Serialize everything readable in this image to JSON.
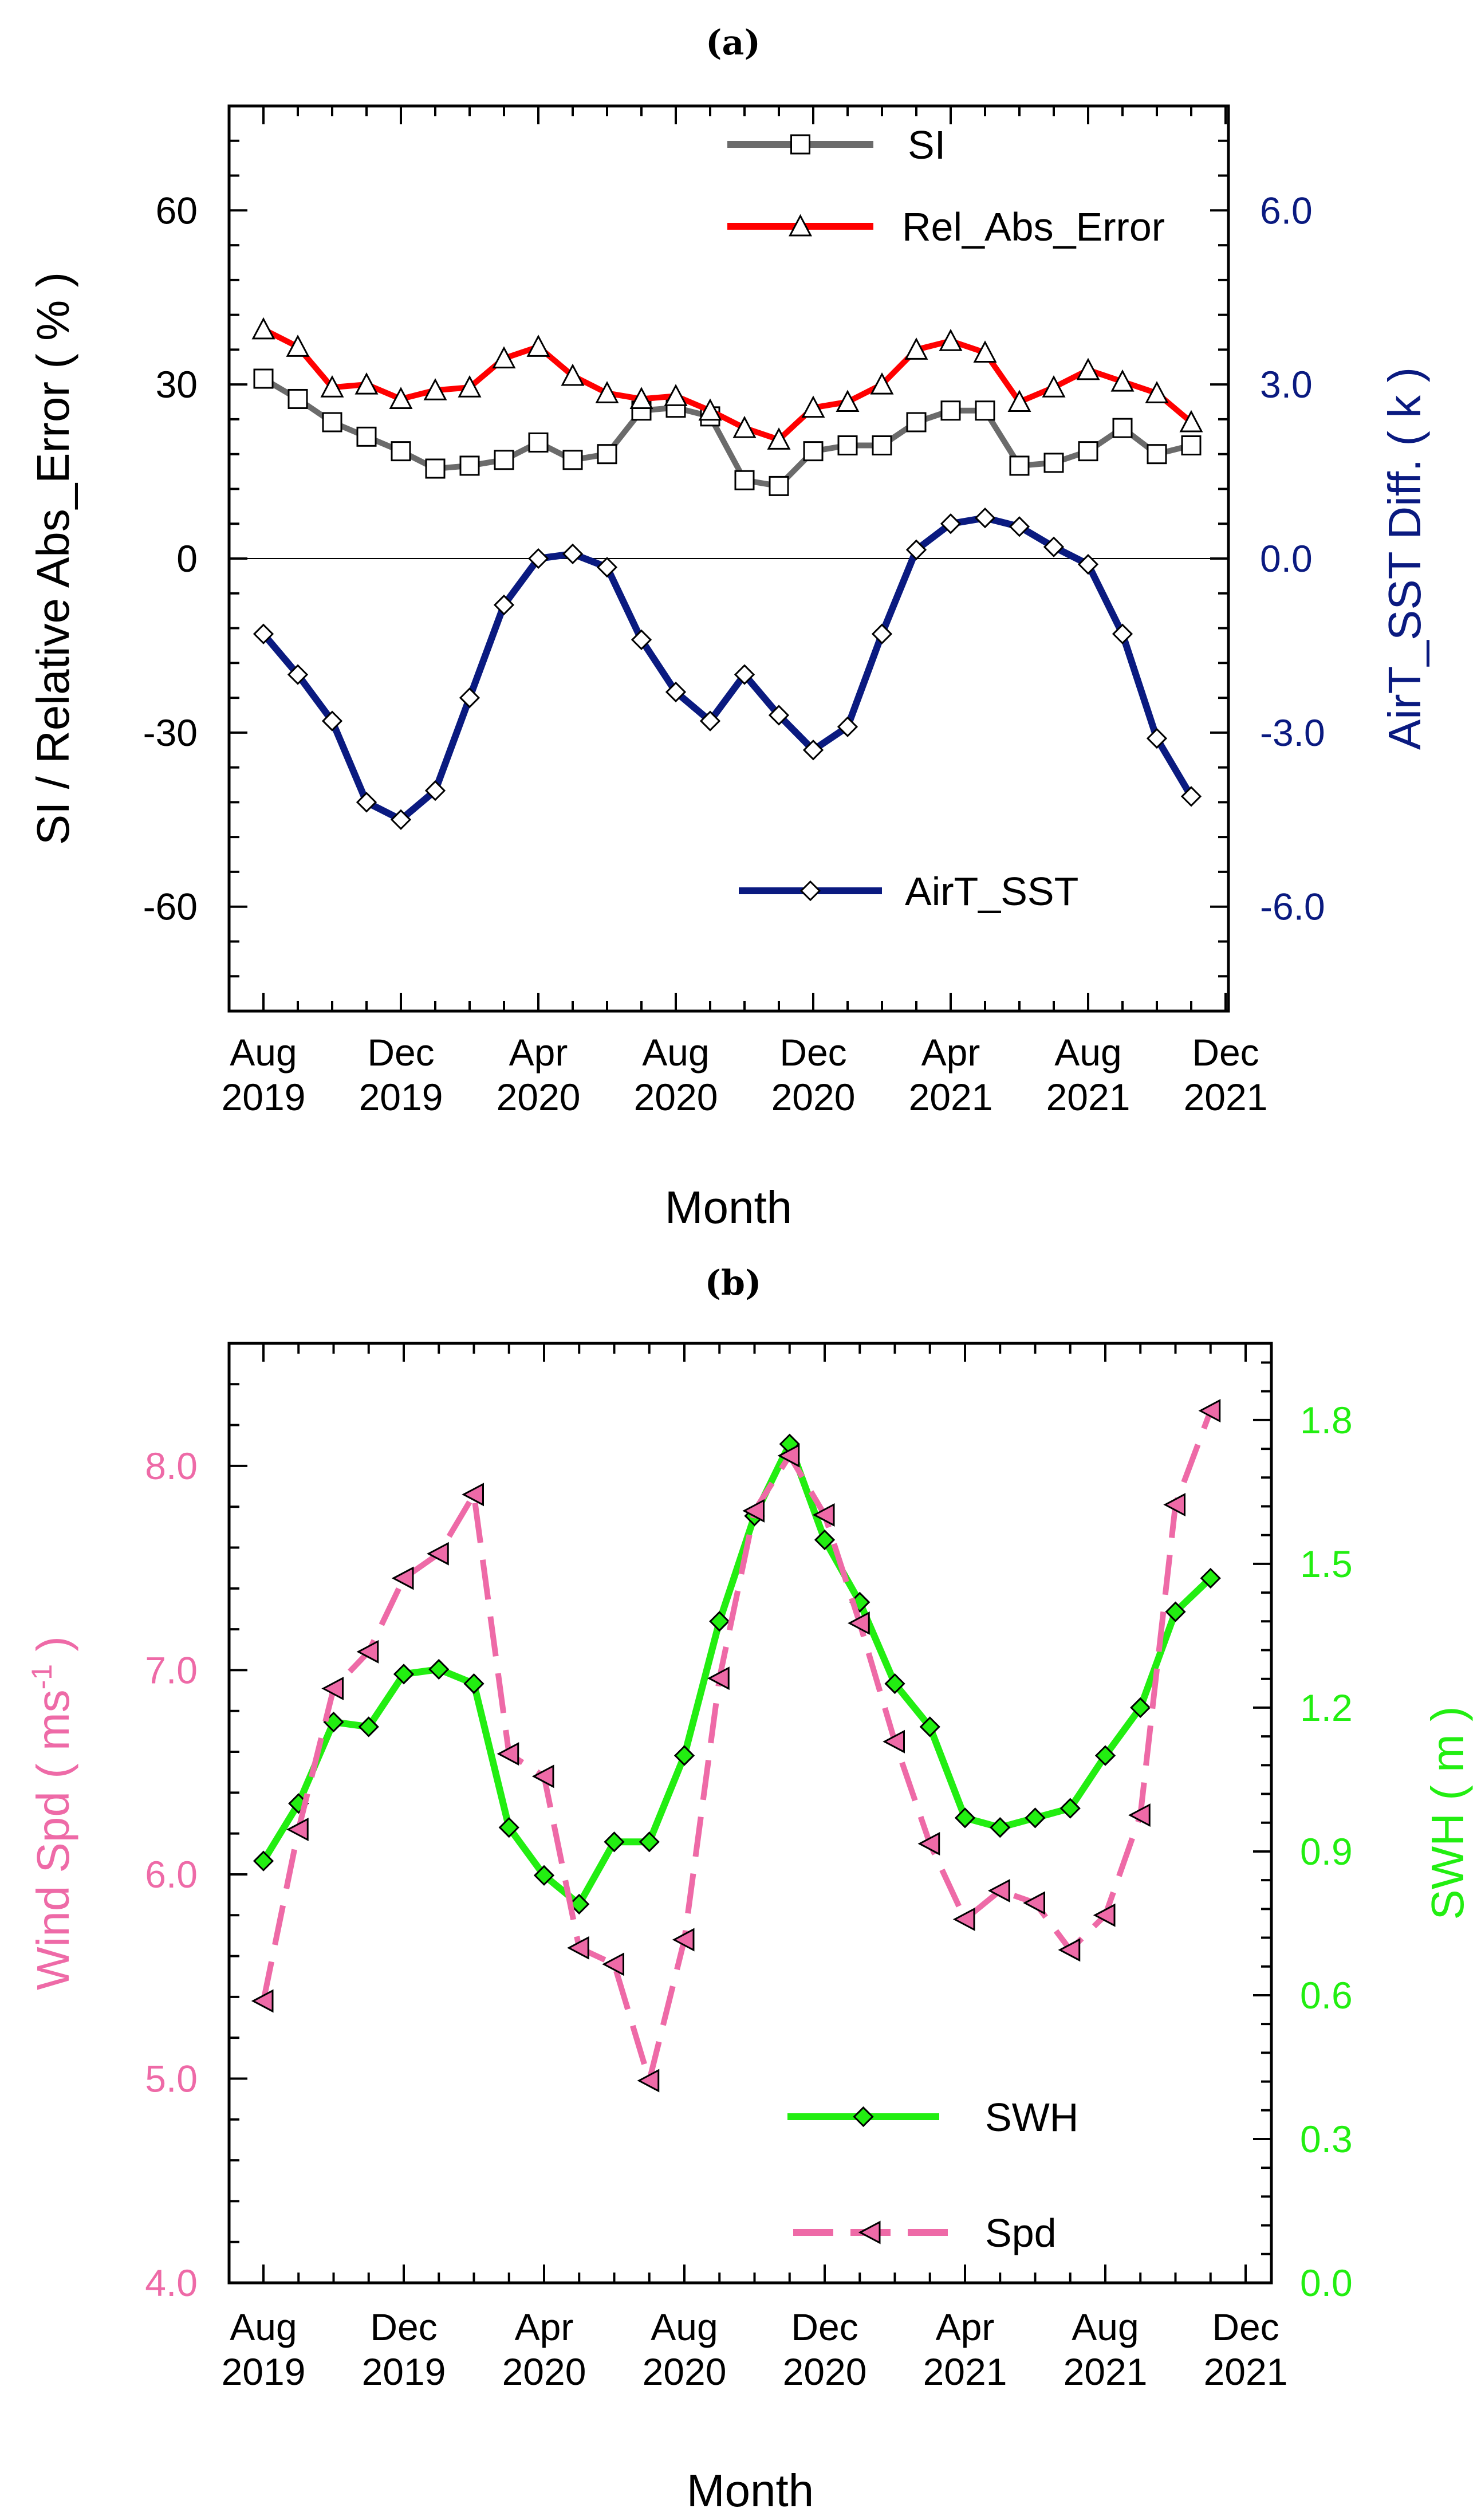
{
  "figure": {
    "panels": [
      "(a)",
      "(b)"
    ]
  },
  "colors": {
    "si": "#6b6b6b",
    "rel_abs_error": "#ff0000",
    "airt_sst": "#0a1a80",
    "right_axis_a": "#0a1a80",
    "swh": "#22ee11",
    "spd": "#ee6aa7",
    "left_axis_b": "#ee6aa7",
    "right_axis_b": "#22ee11"
  },
  "chart_data": [
    {
      "type": "line",
      "panel": "(a)",
      "xlabel": "Month",
      "ylabel": "SI / Relative Abs_Error ( % )",
      "y2label": "AirT_SST Diff. ( k )",
      "x_ticks": [
        "Aug\n2019",
        "Dec\n2019",
        "Apr\n2020",
        "Aug\n2020",
        "Dec\n2020",
        "Apr\n2021",
        "Aug\n2021",
        "Dec\n2021"
      ],
      "ylim": [
        -78,
        78
      ],
      "y_ticks": [
        "60",
        "30",
        "0",
        "-30",
        "-60"
      ],
      "y2lim": [
        -7.8,
        7.8
      ],
      "y2_ticks": [
        "6.0",
        "3.0",
        "0.0",
        "-3.0",
        "-6.0"
      ],
      "x_start": "Aug 2019",
      "zero_line": true,
      "series": [
        {
          "name": "SI",
          "axis": "left",
          "marker": "square",
          "values": [
            31,
            27.5,
            23.5,
            21,
            18.5,
            15.5,
            16,
            17,
            20,
            17,
            18,
            25.5,
            26,
            24.5,
            13.5,
            12.5,
            18.5,
            19.5,
            19.5,
            23.5,
            25.5,
            25.5,
            16,
            16.5,
            18.5,
            22.5,
            18,
            19.5
          ]
        },
        {
          "name": "Rel_Abs_Error",
          "axis": "left",
          "marker": "triangle",
          "values": [
            39.5,
            36.5,
            29.5,
            30,
            27.5,
            29,
            29.5,
            34.5,
            36.5,
            31.5,
            28.5,
            27.5,
            28,
            25.5,
            22.5,
            20.5,
            26,
            27,
            30,
            36,
            37.5,
            35.5,
            27,
            29.5,
            32.5,
            30.5,
            28.5,
            23.5
          ]
        },
        {
          "name": "AirT_SST",
          "axis": "right",
          "marker": "diamond",
          "values": [
            -1.3,
            -2.0,
            -2.8,
            -4.2,
            -4.5,
            -4.0,
            -2.4,
            -0.8,
            0.0,
            0.08,
            -0.15,
            -1.4,
            -2.3,
            -2.8,
            -2.0,
            -2.7,
            -3.3,
            -2.9,
            -1.3,
            0.15,
            0.6,
            0.7,
            0.55,
            0.2,
            -0.1,
            -1.3,
            -3.1,
            -4.1
          ]
        }
      ]
    },
    {
      "type": "line",
      "panel": "(b)",
      "xlabel": "Month",
      "ylabel": "Wind Spd ( ms-1 )",
      "ylabel_main": "Wind Spd ( ms",
      "ylabel_sup": "-1",
      "ylabel_end": " )",
      "y2label": "SWH ( m )",
      "x_ticks": [
        "Aug\n2019",
        "Dec\n2019",
        "Apr\n2020",
        "Aug\n2020",
        "Dec\n2020",
        "Apr\n2021",
        "Aug\n2021",
        "Dec\n2021"
      ],
      "ylim": [
        4.0,
        8.6
      ],
      "y_ticks": [
        "8.0",
        "7.0",
        "6.0",
        "5.0",
        "4.0"
      ],
      "y2lim": [
        0.0,
        1.96
      ],
      "y2_ticks": [
        "1.8",
        "1.5",
        "1.2",
        "0.9",
        "0.6",
        "0.3",
        "0.0"
      ],
      "x_start": "Aug 2019",
      "series": [
        {
          "name": "SWH",
          "axis": "right",
          "marker": "diamond",
          "values": [
            0.88,
            1.0,
            1.17,
            1.16,
            1.27,
            1.28,
            1.25,
            0.95,
            0.85,
            0.79,
            0.92,
            0.92,
            1.1,
            1.38,
            1.6,
            1.75,
            1.55,
            1.42,
            1.25,
            1.16,
            0.97,
            0.95,
            0.97,
            0.99,
            1.1,
            1.2,
            1.4,
            1.47
          ]
        },
        {
          "name": "Spd",
          "axis": "left",
          "marker": "left-triangle",
          "dashed": true,
          "values": [
            5.38,
            6.22,
            6.91,
            7.09,
            7.45,
            7.57,
            7.86,
            6.59,
            6.48,
            5.64,
            5.56,
            4.99,
            5.68,
            6.96,
            7.78,
            8.05,
            7.76,
            7.23,
            6.65,
            6.15,
            5.78,
            5.92,
            5.86,
            5.63,
            5.8,
            6.29,
            7.81,
            8.27
          ]
        }
      ]
    }
  ]
}
